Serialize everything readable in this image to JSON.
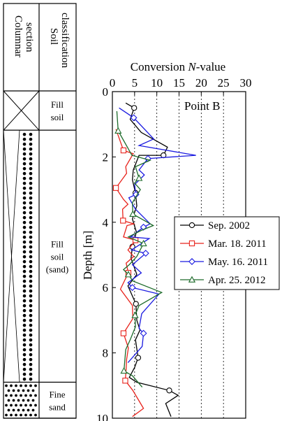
{
  "soil_column": {
    "header_soil_line1": "Soil",
    "header_soil_line2": "classification",
    "header_col_line1": "Columnar",
    "header_col_line2": "section",
    "layers": [
      {
        "lines": [
          "Fill",
          "soil"
        ],
        "pattern": "cross",
        "top": 0.0,
        "bottom": 1.2
      },
      {
        "lines": [
          "Fill",
          "soil",
          "(sand)"
        ],
        "pattern": "dots-column",
        "top": 1.2,
        "bottom": 8.9
      },
      {
        "lines": [
          "Fine",
          "sand"
        ],
        "pattern": "dots-fill",
        "top": 8.9,
        "bottom": 10.0
      }
    ]
  },
  "chart_data": {
    "type": "line",
    "title": "Conversion N-value",
    "title_prefix": "Conversion ",
    "title_italic": "N",
    "title_suffix": "-value",
    "ylabel": "Depth [m]",
    "xlim": [
      0,
      30
    ],
    "ylim": [
      0,
      10
    ],
    "x_axis_position": "top",
    "y_inverted": true,
    "xticks": [
      0,
      5,
      10,
      15,
      20,
      25,
      30
    ],
    "yticks": [
      0,
      2,
      4,
      6,
      8,
      10
    ],
    "grid": "vertical dashed",
    "annotation": "Point B",
    "legend_position": "right-middle",
    "series": [
      {
        "name": "Sep. 2002",
        "color": "#000000",
        "marker": "circle",
        "points": [
          [
            3,
            0.35
          ],
          [
            4.9,
            0.5
          ],
          [
            4,
            0.85
          ],
          [
            6.5,
            1.25
          ],
          [
            12.4,
            1.7
          ],
          [
            11.5,
            1.95
          ],
          [
            6,
            1.95
          ],
          [
            4.7,
            2.4
          ],
          [
            4.5,
            2.7
          ],
          [
            5.2,
            3.1
          ],
          [
            5.5,
            3.5
          ],
          [
            4.5,
            3.9
          ],
          [
            5.4,
            4.3
          ],
          [
            4.5,
            4.75
          ],
          [
            4.2,
            5.1
          ],
          [
            5.5,
            5.6
          ],
          [
            3.5,
            5.95
          ],
          [
            5.3,
            6.5
          ],
          [
            5.5,
            7
          ],
          [
            6.2,
            7.3
          ],
          [
            5.2,
            7.6
          ],
          [
            5.8,
            8.15
          ],
          [
            5,
            8.45
          ],
          [
            3.8,
            8.75
          ],
          [
            5.5,
            8.9
          ],
          [
            12.8,
            9.15
          ],
          [
            14.8,
            9.3
          ],
          [
            12,
            9.55
          ],
          [
            13.2,
            9.95
          ]
        ]
      },
      {
        "name": "Mar. 18. 2011",
        "color": "#e8231c",
        "marker": "square",
        "points": [
          [
            0.8,
            1.15
          ],
          [
            2.5,
            1.8
          ],
          [
            4.7,
            1.9
          ],
          [
            3,
            2.3
          ],
          [
            3.2,
            2.5
          ],
          [
            0.8,
            2.95
          ],
          [
            2.5,
            3.3
          ],
          [
            3.5,
            3.45
          ],
          [
            2.3,
            3.6
          ],
          [
            2.4,
            3.95
          ],
          [
            4.8,
            4.05
          ],
          [
            3.3,
            4.1
          ],
          [
            2.5,
            4.45
          ],
          [
            5.2,
            4.55
          ],
          [
            3.5,
            4.85
          ],
          [
            4.8,
            5.05
          ],
          [
            3.1,
            5.25
          ],
          [
            3.6,
            5.55
          ],
          [
            1.8,
            6.05
          ],
          [
            4.5,
            6.55
          ],
          [
            4.6,
            6.95
          ],
          [
            2.5,
            7.4
          ],
          [
            3.6,
            7.85
          ],
          [
            3.2,
            8.2
          ],
          [
            3.1,
            8.5
          ],
          [
            2.9,
            8.85
          ],
          [
            4.6,
            9.15
          ],
          [
            7,
            9.7
          ],
          [
            4.5,
            9.95
          ]
        ]
      },
      {
        "name": "May. 16. 2011",
        "color": "#1a1ae0",
        "marker": "diamond",
        "points": [
          [
            1.5,
            0.5
          ],
          [
            4.8,
            0.8
          ],
          [
            9.3,
            1.45
          ],
          [
            6,
            1.65
          ],
          [
            18.8,
            1.95
          ],
          [
            8,
            2.05
          ],
          [
            6,
            2.4
          ],
          [
            7.2,
            2.55
          ],
          [
            5,
            2.85
          ],
          [
            5.3,
            3.15
          ],
          [
            3.7,
            3.25
          ],
          [
            5.2,
            3.6
          ],
          [
            8.5,
            4.05
          ],
          [
            7,
            4.15
          ],
          [
            4.1,
            4.45
          ],
          [
            8.3,
            4.5
          ],
          [
            4.3,
            4.85
          ],
          [
            7.5,
            4.95
          ],
          [
            4.5,
            5.3
          ],
          [
            6.5,
            5.55
          ],
          [
            3.5,
            5.85
          ],
          [
            4.5,
            6
          ],
          [
            10.5,
            6.2
          ],
          [
            6.6,
            6.8
          ],
          [
            6,
            7.25
          ],
          [
            7,
            7.4
          ],
          [
            6.7,
            7.8
          ],
          [
            3.5,
            8.3
          ]
        ]
      },
      {
        "name": "Apr. 25. 2012",
        "color": "#1d6b2a",
        "marker": "triangle",
        "points": [
          [
            1,
            0.6
          ],
          [
            1.3,
            1.2
          ],
          [
            4.4,
            1.95
          ],
          [
            8.5,
            2.1
          ],
          [
            5.2,
            2.3
          ],
          [
            6,
            2.65
          ],
          [
            5,
            2.8
          ],
          [
            6.3,
            3
          ],
          [
            4.5,
            3.4
          ],
          [
            4.6,
            3.75
          ],
          [
            9.2,
            4.1
          ],
          [
            6.5,
            4.25
          ],
          [
            3.6,
            4.45
          ],
          [
            7,
            4.65
          ],
          [
            5.5,
            5.05
          ],
          [
            3.8,
            5.3
          ],
          [
            2.5,
            5.45
          ],
          [
            3.6,
            5.6
          ],
          [
            4.6,
            5.8
          ],
          [
            11.1,
            6.15
          ],
          [
            6,
            6.55
          ],
          [
            5.1,
            6.85
          ],
          [
            5.2,
            7.2
          ],
          [
            4,
            7.6
          ],
          [
            3,
            7.9
          ],
          [
            2.6,
            8.55
          ],
          [
            4.5,
            8.7
          ],
          [
            6.7,
            9.05
          ]
        ]
      }
    ]
  }
}
